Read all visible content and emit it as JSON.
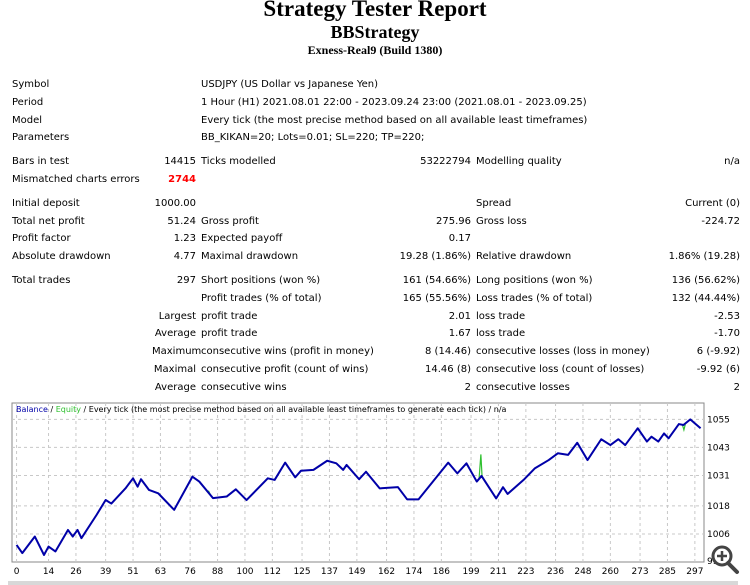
{
  "header": {
    "title": "Strategy Tester Report",
    "expert": "BBStrategy",
    "server": "Exness-Real9 (Build 1380)"
  },
  "groups": [
    [
      {
        "label": "Symbol",
        "wide": "USDJPY (US Dollar vs Japanese Yen)"
      },
      {
        "label": "Period",
        "wide": "1 Hour (H1) 2021.08.01 22:00 - 2023.09.24 23:00 (2021.08.01 - 2023.09.25)"
      },
      {
        "label": "Model",
        "wide": "Every tick (the most precise method based on all available least timeframes)"
      },
      {
        "label": "Parameters",
        "wide": "BB_KIKAN=20; Lots=0.01; SL=220; TP=220;"
      }
    ],
    [
      {
        "cells": [
          "Bars in test",
          "14415",
          "Ticks modelled",
          "53222794",
          "Modelling quality",
          "n/a"
        ]
      },
      {
        "cells": [
          "Mismatched charts errors",
          "2744",
          "",
          "",
          "",
          ""
        ],
        "red": 1
      }
    ],
    [
      {
        "cells": [
          "Initial deposit",
          "1000.00",
          "",
          "",
          "Spread",
          "Current (0)"
        ]
      },
      {
        "cells": [
          "Total net profit",
          "51.24",
          "Gross profit",
          "275.96",
          "Gross loss",
          "-224.72"
        ]
      },
      {
        "cells": [
          "Profit factor",
          "1.23",
          "Expected payoff",
          "0.17",
          "",
          ""
        ]
      },
      {
        "cells": [
          "Absolute drawdown",
          "4.77",
          "Maximal drawdown",
          "19.28 (1.86%)",
          "Relative drawdown",
          "1.86% (19.28)"
        ]
      }
    ],
    [
      {
        "cells": [
          "Total trades",
          "297",
          "Short positions (won %)",
          "161 (54.66%)",
          "Long positions (won %)",
          "136 (56.62%)"
        ]
      },
      {
        "cells": [
          "",
          "",
          "Profit trades (% of total)",
          "165 (55.56%)",
          "Loss trades (% of total)",
          "132 (44.44%)"
        ]
      },
      {
        "cells": [
          "",
          "Largest",
          "profit trade",
          "2.01",
          "loss trade",
          "-2.53"
        ]
      },
      {
        "cells": [
          "",
          "Average",
          "profit trade",
          "1.67",
          "loss trade",
          "-1.70"
        ]
      },
      {
        "cells": [
          "",
          "Maximum",
          "consecutive wins (profit in money)",
          "8 (14.46)",
          "consecutive losses (loss in money)",
          "6 (-9.92)"
        ]
      },
      {
        "cells": [
          "",
          "Maximal",
          "consecutive profit (count of wins)",
          "14.46 (8)",
          "consecutive loss (count of losses)",
          "-9.92 (6)"
        ]
      },
      {
        "cells": [
          "",
          "Average",
          "consecutive wins",
          "2",
          "consecutive losses",
          "2"
        ]
      }
    ]
  ],
  "chart_data": {
    "type": "line",
    "legend": {
      "balance": "Balance",
      "sep1": " / ",
      "equity": "Equity",
      "rest": " / Every tick (the most precise method based on all available least timeframes to generate each tick) / n/a"
    },
    "colors": {
      "balance": "#0000a8",
      "equity": "#2fc02f",
      "grid": "#c8c8c8"
    },
    "xlim": [
      -2,
      301
    ],
    "ylim": [
      994,
      1062
    ],
    "xticks": [
      0,
      14,
      26,
      39,
      51,
      63,
      76,
      88,
      100,
      112,
      125,
      137,
      149,
      162,
      174,
      186,
      199,
      211,
      223,
      236,
      248,
      260,
      273,
      285,
      297
    ],
    "yticks": [
      1055,
      1043,
      1031,
      1018,
      1006
    ],
    "ytick_bottom_label": "99",
    "grid": true,
    "balance": [
      [
        0,
        1001.3
      ],
      [
        2.5,
        997.8
      ],
      [
        8,
        1004.9
      ],
      [
        12,
        997
      ],
      [
        14,
        1000.6
      ],
      [
        17,
        998.5
      ],
      [
        22.5,
        1007.7
      ],
      [
        24.6,
        1004.9
      ],
      [
        26.7,
        1007.7
      ],
      [
        28.4,
        1004.2
      ],
      [
        35,
        1014.1
      ],
      [
        39,
        1020.5
      ],
      [
        41.5,
        1019
      ],
      [
        47.7,
        1025.5
      ],
      [
        51,
        1029.8
      ],
      [
        53,
        1026.2
      ],
      [
        54.5,
        1029.4
      ],
      [
        58,
        1024.8
      ],
      [
        62,
        1023.4
      ],
      [
        69,
        1016.3
      ],
      [
        77,
        1030.5
      ],
      [
        80,
        1028.4
      ],
      [
        86,
        1021.3
      ],
      [
        92,
        1022
      ],
      [
        96,
        1025.1
      ],
      [
        100.7,
        1020.5
      ],
      [
        110,
        1029.8
      ],
      [
        113,
        1029.1
      ],
      [
        117.6,
        1036.5
      ],
      [
        122,
        1030.2
      ],
      [
        124.5,
        1033
      ],
      [
        130,
        1033.4
      ],
      [
        136,
        1037.3
      ],
      [
        140,
        1036.2
      ],
      [
        143,
        1033.4
      ],
      [
        144.5,
        1035.5
      ],
      [
        150,
        1029.4
      ],
      [
        153,
        1032.6
      ],
      [
        159,
        1025.5
      ],
      [
        167,
        1026
      ],
      [
        171,
        1020.8
      ],
      [
        176,
        1020.8
      ],
      [
        189,
        1036.5
      ],
      [
        193,
        1031.9
      ],
      [
        197,
        1036.2
      ],
      [
        201.5,
        1028.4
      ],
      [
        203.6,
        1030.8
      ],
      [
        210,
        1021.2
      ],
      [
        213,
        1026
      ],
      [
        215,
        1023.1
      ],
      [
        222,
        1029.1
      ],
      [
        227,
        1034.1
      ],
      [
        233,
        1037.6
      ],
      [
        237,
        1040.5
      ],
      [
        241.5,
        1039.8
      ],
      [
        245.5,
        1045
      ],
      [
        250,
        1037.6
      ],
      [
        256,
        1046.5
      ],
      [
        260,
        1044
      ],
      [
        263.5,
        1046.5
      ],
      [
        266.5,
        1044
      ],
      [
        272,
        1051.2
      ],
      [
        276,
        1045.5
      ],
      [
        278,
        1047.6
      ],
      [
        281,
        1045.5
      ],
      [
        283.5,
        1049
      ],
      [
        285.5,
        1046.9
      ],
      [
        290,
        1053
      ],
      [
        292,
        1052.6
      ],
      [
        295,
        1055
      ],
      [
        297,
        1053.3
      ],
      [
        299.5,
        1051.2
      ]
    ],
    "equity_spikes": [
      [
        [
          84,
          1024.5
        ],
        [
          85,
          1022.5
        ],
        [
          86,
          1021.3
        ]
      ],
      [
        [
          202.5,
          1029.5
        ],
        [
          203.3,
          1040
        ],
        [
          203.8,
          1031
        ]
      ],
      [
        [
          291.5,
          1052.8
        ],
        [
          292.2,
          1050.5
        ],
        [
          292.8,
          1052.8
        ]
      ]
    ]
  }
}
